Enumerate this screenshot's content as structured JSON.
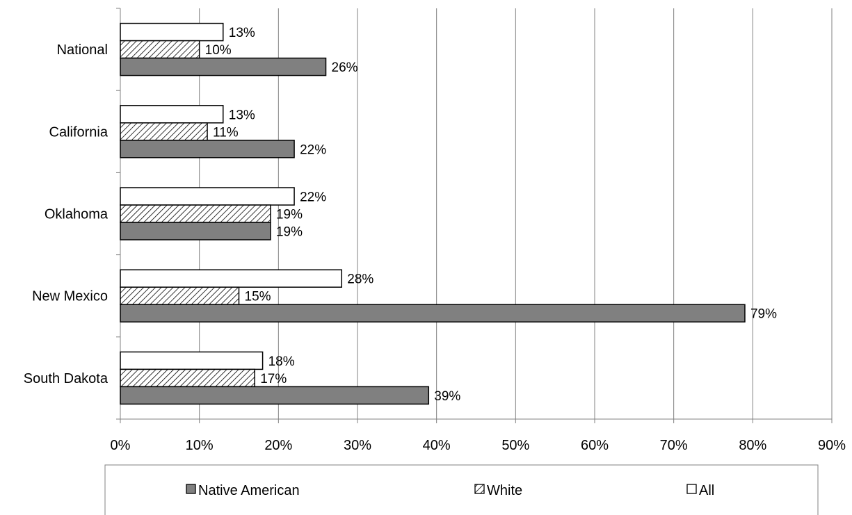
{
  "chart_data": {
    "type": "bar",
    "orientation": "horizontal",
    "categories": [
      "National",
      "California",
      "Oklahoma",
      "New Mexico",
      "South Dakota"
    ],
    "series": [
      {
        "name": "All",
        "values": [
          13,
          13,
          22,
          28,
          18
        ],
        "labels": [
          "13%",
          "13%",
          "22%",
          "28%",
          "18%"
        ],
        "fill": "#ffffff",
        "pattern": "solid"
      },
      {
        "name": "White",
        "values": [
          10,
          11,
          19,
          15,
          17
        ],
        "labels": [
          "10%",
          "11%",
          "19%",
          "15%",
          "17%"
        ],
        "fill": "#ffffff",
        "pattern": "diagonal-hatch"
      },
      {
        "name": "Native American",
        "values": [
          26,
          22,
          19,
          79,
          39
        ],
        "labels": [
          "26%",
          "22%",
          "19%",
          "79%",
          "39%"
        ],
        "fill": "#808080",
        "pattern": "solid"
      }
    ],
    "xlim": [
      0,
      90
    ],
    "x_ticks": [
      "0%",
      "10%",
      "20%",
      "30%",
      "40%",
      "50%",
      "60%",
      "70%",
      "80%",
      "90%"
    ],
    "legend": {
      "position": "bottom",
      "entries": [
        "Native American",
        "White",
        "All"
      ]
    },
    "grid": "vertical major gridlines",
    "colors": {
      "native_american": "#808080",
      "white_hatch": "#000000",
      "all": "#ffffff",
      "axis": "#808080"
    }
  }
}
